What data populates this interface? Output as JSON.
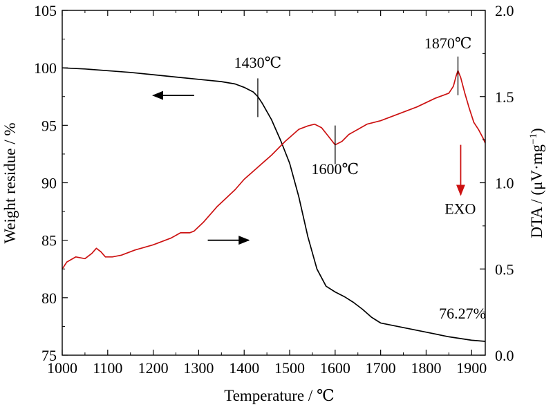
{
  "chart_data": {
    "type": "line",
    "xlabel": "Temperature / ℃",
    "ylabel_left": "Weight residue / %",
    "ylabel_right_main": "DTA / (μV·mg",
    "ylabel_right_sup": "−1",
    "ylabel_right_close": ")",
    "xlim": [
      1000,
      1930
    ],
    "ylim_left": [
      75,
      105
    ],
    "ylim_right": [
      0.0,
      2.0
    ],
    "x_ticks": [
      1000,
      1100,
      1200,
      1300,
      1400,
      1500,
      1600,
      1700,
      1800,
      1900
    ],
    "x_tick_labels": [
      "1000",
      "1100",
      "1200",
      "1300",
      "1400",
      "1500",
      "1600",
      "1700",
      "1800",
      "1900"
    ],
    "y_left_ticks": [
      75,
      80,
      85,
      90,
      95,
      100,
      105
    ],
    "y_left_tick_labels": [
      "75",
      "80",
      "85",
      "90",
      "95",
      "100",
      "105"
    ],
    "y_right_ticks": [
      0.0,
      0.5,
      1.0,
      1.5,
      2.0
    ],
    "y_right_tick_labels": [
      "0.0",
      "0.5",
      "1.0",
      "1.5",
      "2.0"
    ],
    "grid": false,
    "legend": "none",
    "series": [
      {
        "axis": "left",
        "color": "#000000",
        "x": [
          1000,
          1050,
          1100,
          1150,
          1200,
          1250,
          1300,
          1350,
          1380,
          1400,
          1420,
          1430,
          1440,
          1460,
          1480,
          1500,
          1520,
          1540,
          1560,
          1580,
          1600,
          1620,
          1640,
          1660,
          1680,
          1700,
          1750,
          1800,
          1850,
          1900,
          1930
        ],
        "values": [
          100.0,
          99.9,
          99.75,
          99.6,
          99.4,
          99.2,
          99.0,
          98.8,
          98.6,
          98.3,
          97.9,
          97.5,
          96.9,
          95.5,
          93.7,
          91.7,
          88.8,
          85.3,
          82.5,
          81.0,
          80.5,
          80.1,
          79.6,
          79.0,
          78.3,
          77.8,
          77.4,
          77.0,
          76.6,
          76.3,
          76.2
        ]
      },
      {
        "axis": "right",
        "color": "#cc1111",
        "x": [
          1000,
          1010,
          1030,
          1050,
          1065,
          1075,
          1085,
          1095,
          1110,
          1130,
          1160,
          1200,
          1240,
          1260,
          1280,
          1290,
          1310,
          1340,
          1380,
          1400,
          1430,
          1460,
          1490,
          1520,
          1540,
          1555,
          1570,
          1585,
          1600,
          1615,
          1630,
          1650,
          1670,
          1700,
          1740,
          1780,
          1820,
          1840,
          1850,
          1860,
          1866,
          1870,
          1876,
          1885,
          1895,
          1905,
          1915,
          1925,
          1930
        ],
        "values": [
          0.5,
          0.54,
          0.57,
          0.56,
          0.59,
          0.62,
          0.6,
          0.57,
          0.57,
          0.58,
          0.61,
          0.64,
          0.68,
          0.71,
          0.71,
          0.72,
          0.77,
          0.86,
          0.96,
          1.02,
          1.09,
          1.16,
          1.24,
          1.31,
          1.33,
          1.34,
          1.32,
          1.27,
          1.22,
          1.24,
          1.28,
          1.31,
          1.34,
          1.36,
          1.4,
          1.44,
          1.49,
          1.51,
          1.52,
          1.56,
          1.62,
          1.65,
          1.61,
          1.52,
          1.43,
          1.35,
          1.31,
          1.26,
          1.23
        ]
      }
    ],
    "annotations": [
      {
        "text": "1430℃",
        "x": 1430,
        "y": 100.0,
        "axis": "left",
        "marker_y": 97.4,
        "anchor": "middle"
      },
      {
        "text": "1600℃",
        "x": 1600,
        "y": 1.05,
        "axis": "right",
        "marker_y": 1.22,
        "anchor": "middle"
      },
      {
        "text": "1870℃",
        "x": 1870,
        "y": 1.78,
        "axis": "right",
        "marker_y": 1.62,
        "anchor": "end"
      },
      {
        "text": "76.27%",
        "x": 1880,
        "y": 78.2,
        "axis": "left",
        "anchor": "middle"
      },
      {
        "text": "EXO",
        "x": 1875,
        "y": 0.82,
        "axis": "right",
        "anchor": "middle"
      }
    ],
    "arrows": [
      {
        "direction": "left",
        "from_x": 1290,
        "to_x": 1200,
        "y": 97.6,
        "axis": "left",
        "color": "#000000"
      },
      {
        "direction": "right",
        "from_x": 1320,
        "to_x": 1410,
        "y": 85.0,
        "axis": "left",
        "color": "#000000"
      },
      {
        "direction": "down",
        "x": 1876,
        "from_y": 1.22,
        "to_y": 0.93,
        "axis": "right",
        "color": "#cc1111"
      }
    ]
  }
}
